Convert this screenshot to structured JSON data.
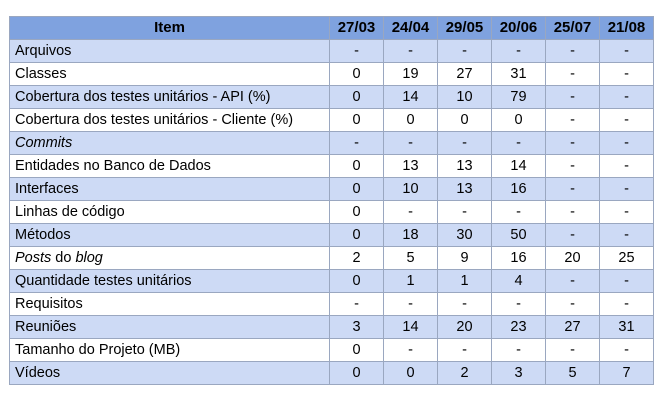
{
  "table": {
    "header_item": "Item",
    "dates": [
      "27/03",
      "24/04",
      "29/05",
      "20/06",
      "25/07",
      "21/08"
    ],
    "rows": [
      {
        "pre": "",
        "em": "",
        "post": "Arquivos",
        "values": [
          "-",
          "-",
          "-",
          "-",
          "-",
          "-"
        ]
      },
      {
        "pre": "",
        "em": "",
        "post": "Classes",
        "values": [
          "0",
          "19",
          "27",
          "31",
          "-",
          "-"
        ]
      },
      {
        "pre": "",
        "em": "",
        "post": "Cobertura dos testes unitários - API (%)",
        "values": [
          "0",
          "14",
          "10",
          "79",
          "-",
          "-"
        ]
      },
      {
        "pre": "",
        "em": "",
        "post": "Cobertura dos testes unitários - Cliente (%)",
        "values": [
          "0",
          "0",
          "0",
          "0",
          "-",
          "-"
        ]
      },
      {
        "pre": "",
        "em": "Commits",
        "post": "",
        "values": [
          "-",
          "-",
          "-",
          "-",
          "-",
          "-"
        ]
      },
      {
        "pre": "",
        "em": "",
        "post": "Entidades no Banco de Dados",
        "values": [
          "0",
          "13",
          "13",
          "14",
          "-",
          "-"
        ]
      },
      {
        "pre": "",
        "em": "",
        "post": "Interfaces",
        "values": [
          "0",
          "10",
          "13",
          "16",
          "-",
          "-"
        ]
      },
      {
        "pre": "",
        "em": "",
        "post": "Linhas de código",
        "values": [
          "0",
          "-",
          "-",
          "-",
          "-",
          "-"
        ]
      },
      {
        "pre": "",
        "em": "",
        "post": "Métodos",
        "values": [
          "0",
          "18",
          "30",
          "50",
          "-",
          "-"
        ]
      },
      {
        "pre": "",
        "em": "Posts",
        "post": " do ",
        "em2": "blog",
        "values": [
          "2",
          "5",
          "9",
          "16",
          "20",
          "25"
        ]
      },
      {
        "pre": "",
        "em": "",
        "post": "Quantidade testes unitários",
        "values": [
          "0",
          "1",
          "1",
          "4",
          "-",
          "-"
        ]
      },
      {
        "pre": "",
        "em": "",
        "post": "Requisitos",
        "values": [
          "-",
          "-",
          "-",
          "-",
          "-",
          "-"
        ]
      },
      {
        "pre": "",
        "em": "",
        "post": "Reuniões",
        "values": [
          "3",
          "14",
          "20",
          "23",
          "27",
          "31"
        ]
      },
      {
        "pre": "",
        "em": "",
        "post": "Tamanho do Projeto (MB)",
        "values": [
          "0",
          "-",
          "-",
          "-",
          "-",
          "-"
        ]
      },
      {
        "pre": "",
        "em": "",
        "post": "Vídeos",
        "values": [
          "0",
          "0",
          "2",
          "3",
          "5",
          "7"
        ]
      }
    ]
  }
}
